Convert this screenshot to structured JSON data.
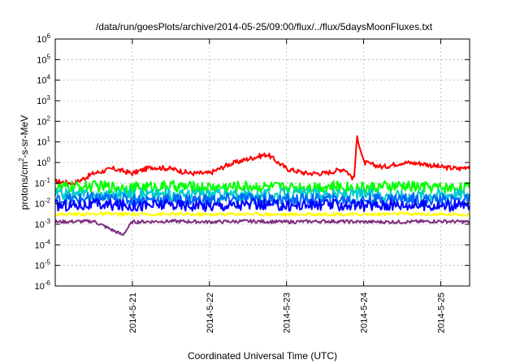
{
  "chart_data": {
    "type": "line",
    "title": "/data/run/goesPlots/archive/2014-05-25/09:00/flux/../flux/5daysMoonFluxes.txt",
    "xlabel": "Coordinated Universal Time (UTC)",
    "ylabel_parts": [
      "protons/cm",
      "2",
      "-s-sr-MeV"
    ],
    "y_scale": "log",
    "ylim": [
      1e-06,
      1000000.0
    ],
    "y_ticks": [
      {
        "value": 1e-06,
        "base": "10",
        "exp": "-6"
      },
      {
        "value": 1e-05,
        "base": "10",
        "exp": "-5"
      },
      {
        "value": 0.0001,
        "base": "10",
        "exp": "-4"
      },
      {
        "value": 0.001,
        "base": "10",
        "exp": "-3"
      },
      {
        "value": 0.01,
        "base": "10",
        "exp": "-2"
      },
      {
        "value": 0.1,
        "base": "10",
        "exp": "-1"
      },
      {
        "value": 1,
        "base": "10",
        "exp": "0"
      },
      {
        "value": 10,
        "base": "10",
        "exp": "1"
      },
      {
        "value": 100,
        "base": "10",
        "exp": "2"
      },
      {
        "value": 1000,
        "base": "10",
        "exp": "3"
      },
      {
        "value": 10000,
        "base": "10",
        "exp": "4"
      },
      {
        "value": 100000,
        "base": "10",
        "exp": "5"
      },
      {
        "value": 1000000,
        "base": "10",
        "exp": "6"
      }
    ],
    "xlim": [
      "2014-05-20T00:00",
      "2014-05-25T09:00"
    ],
    "x_ticks": [
      "2014-5-21",
      "2014-5-22",
      "2014-5-23",
      "2014-5-24",
      "2014-5-25"
    ],
    "grid": true,
    "series": [
      {
        "color": "#ff0000",
        "x": [
          "2014-05-20T00:00",
          "2014-05-20T06:00",
          "2014-05-20T12:00",
          "2014-05-20T18:00",
          "2014-05-21T00:00",
          "2014-05-21T06:00",
          "2014-05-21T12:00",
          "2014-05-21T18:00",
          "2014-05-22T00:00",
          "2014-05-22T06:00",
          "2014-05-22T12:00",
          "2014-05-22T18:00",
          "2014-05-23T00:00",
          "2014-05-23T06:00",
          "2014-05-23T12:00",
          "2014-05-23T18:00",
          "2014-05-23T21:00",
          "2014-05-23T22:00",
          "2014-05-24T00:00",
          "2014-05-24T06:00",
          "2014-05-24T12:00",
          "2014-05-24T18:00",
          "2014-05-25T00:00",
          "2014-05-25T06:00",
          "2014-05-25T09:00"
        ],
        "values": [
          0.12,
          0.1,
          0.3,
          0.5,
          0.3,
          0.6,
          0.5,
          0.3,
          0.3,
          0.8,
          1.5,
          2.5,
          0.5,
          0.3,
          0.3,
          0.5,
          0.15,
          20,
          1,
          0.6,
          1,
          0.9,
          0.6,
          0.5,
          0.7
        ]
      },
      {
        "color": "#00ff00",
        "x": [
          "2014-05-20T00:00",
          "2014-05-20T12:00",
          "2014-05-21T00:00",
          "2014-05-21T12:00",
          "2014-05-22T00:00",
          "2014-05-22T12:00",
          "2014-05-23T00:00",
          "2014-05-23T12:00",
          "2014-05-24T00:00",
          "2014-05-24T12:00",
          "2014-05-25T00:00",
          "2014-05-25T09:00"
        ],
        "values": [
          0.06,
          0.07,
          0.06,
          0.07,
          0.06,
          0.07,
          0.06,
          0.07,
          0.06,
          0.07,
          0.06,
          0.06
        ]
      },
      {
        "color": "#00cccc",
        "x": [
          "2014-05-20T00:00",
          "2014-05-20T12:00",
          "2014-05-21T00:00",
          "2014-05-21T12:00",
          "2014-05-22T00:00",
          "2014-05-22T12:00",
          "2014-05-23T00:00",
          "2014-05-23T12:00",
          "2014-05-24T00:00",
          "2014-05-24T12:00",
          "2014-05-25T00:00",
          "2014-05-25T09:00"
        ],
        "values": [
          0.03,
          0.025,
          0.03,
          0.028,
          0.03,
          0.025,
          0.03,
          0.028,
          0.03,
          0.025,
          0.03,
          0.03
        ]
      },
      {
        "color": "#0066ff",
        "x": [
          "2014-05-20T00:00",
          "2014-05-20T12:00",
          "2014-05-21T00:00",
          "2014-05-21T12:00",
          "2014-05-22T00:00",
          "2014-05-22T12:00",
          "2014-05-23T00:00",
          "2014-05-23T12:00",
          "2014-05-24T00:00",
          "2014-05-24T12:00",
          "2014-05-25T00:00",
          "2014-05-25T09:00"
        ],
        "values": [
          0.015,
          0.018,
          0.015,
          0.016,
          0.015,
          0.018,
          0.015,
          0.016,
          0.015,
          0.018,
          0.015,
          0.015
        ]
      },
      {
        "color": "#0000ff",
        "x": [
          "2014-05-20T00:00",
          "2014-05-20T12:00",
          "2014-05-21T00:00",
          "2014-05-21T12:00",
          "2014-05-22T00:00",
          "2014-05-22T12:00",
          "2014-05-23T00:00",
          "2014-05-23T12:00",
          "2014-05-24T00:00",
          "2014-05-24T12:00",
          "2014-05-25T00:00",
          "2014-05-25T09:00"
        ],
        "values": [
          0.008,
          0.009,
          0.008,
          0.009,
          0.008,
          0.009,
          0.008,
          0.009,
          0.008,
          0.009,
          0.008,
          0.008
        ]
      },
      {
        "color": "#ffff00",
        "x": [
          "2014-05-20T00:00",
          "2014-05-20T12:00",
          "2014-05-21T00:00",
          "2014-05-21T12:00",
          "2014-05-22T00:00",
          "2014-05-22T12:00",
          "2014-05-23T00:00",
          "2014-05-23T12:00",
          "2014-05-24T00:00",
          "2014-05-24T12:00",
          "2014-05-25T00:00",
          "2014-05-25T09:00"
        ],
        "values": [
          0.003,
          0.0032,
          0.003,
          0.0031,
          0.003,
          0.0032,
          0.003,
          0.0031,
          0.003,
          0.0032,
          0.003,
          0.003
        ]
      },
      {
        "color": "#7f2f7f",
        "x": [
          "2014-05-20T00:00",
          "2014-05-20T12:00",
          "2014-05-20T21:00",
          "2014-05-21T00:00",
          "2014-05-21T12:00",
          "2014-05-22T00:00",
          "2014-05-22T12:00",
          "2014-05-23T00:00",
          "2014-05-23T12:00",
          "2014-05-24T00:00",
          "2014-05-24T12:00",
          "2014-05-25T00:00",
          "2014-05-25T09:00"
        ],
        "values": [
          0.0013,
          0.0014,
          0.0003,
          0.0013,
          0.0014,
          0.0013,
          0.0014,
          0.0013,
          0.0014,
          0.0013,
          0.0013,
          0.0014,
          0.0013
        ]
      }
    ]
  }
}
